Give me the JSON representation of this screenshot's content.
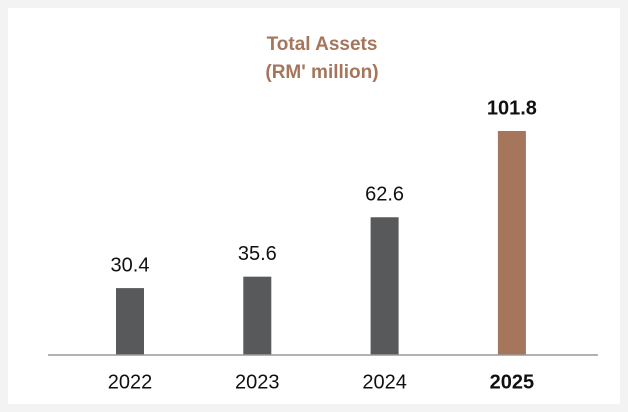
{
  "chart_data": {
    "type": "bar",
    "title": "Total Assets",
    "subtitle": "(RM' million)",
    "categories": [
      "2022",
      "2023",
      "2024",
      "2025"
    ],
    "values": [
      30.4,
      35.6,
      62.6,
      101.8
    ],
    "colors": [
      "#58595b",
      "#58595b",
      "#58595b",
      "#a5765c"
    ],
    "highlight_index": 3,
    "title_color": "#a5765c"
  }
}
